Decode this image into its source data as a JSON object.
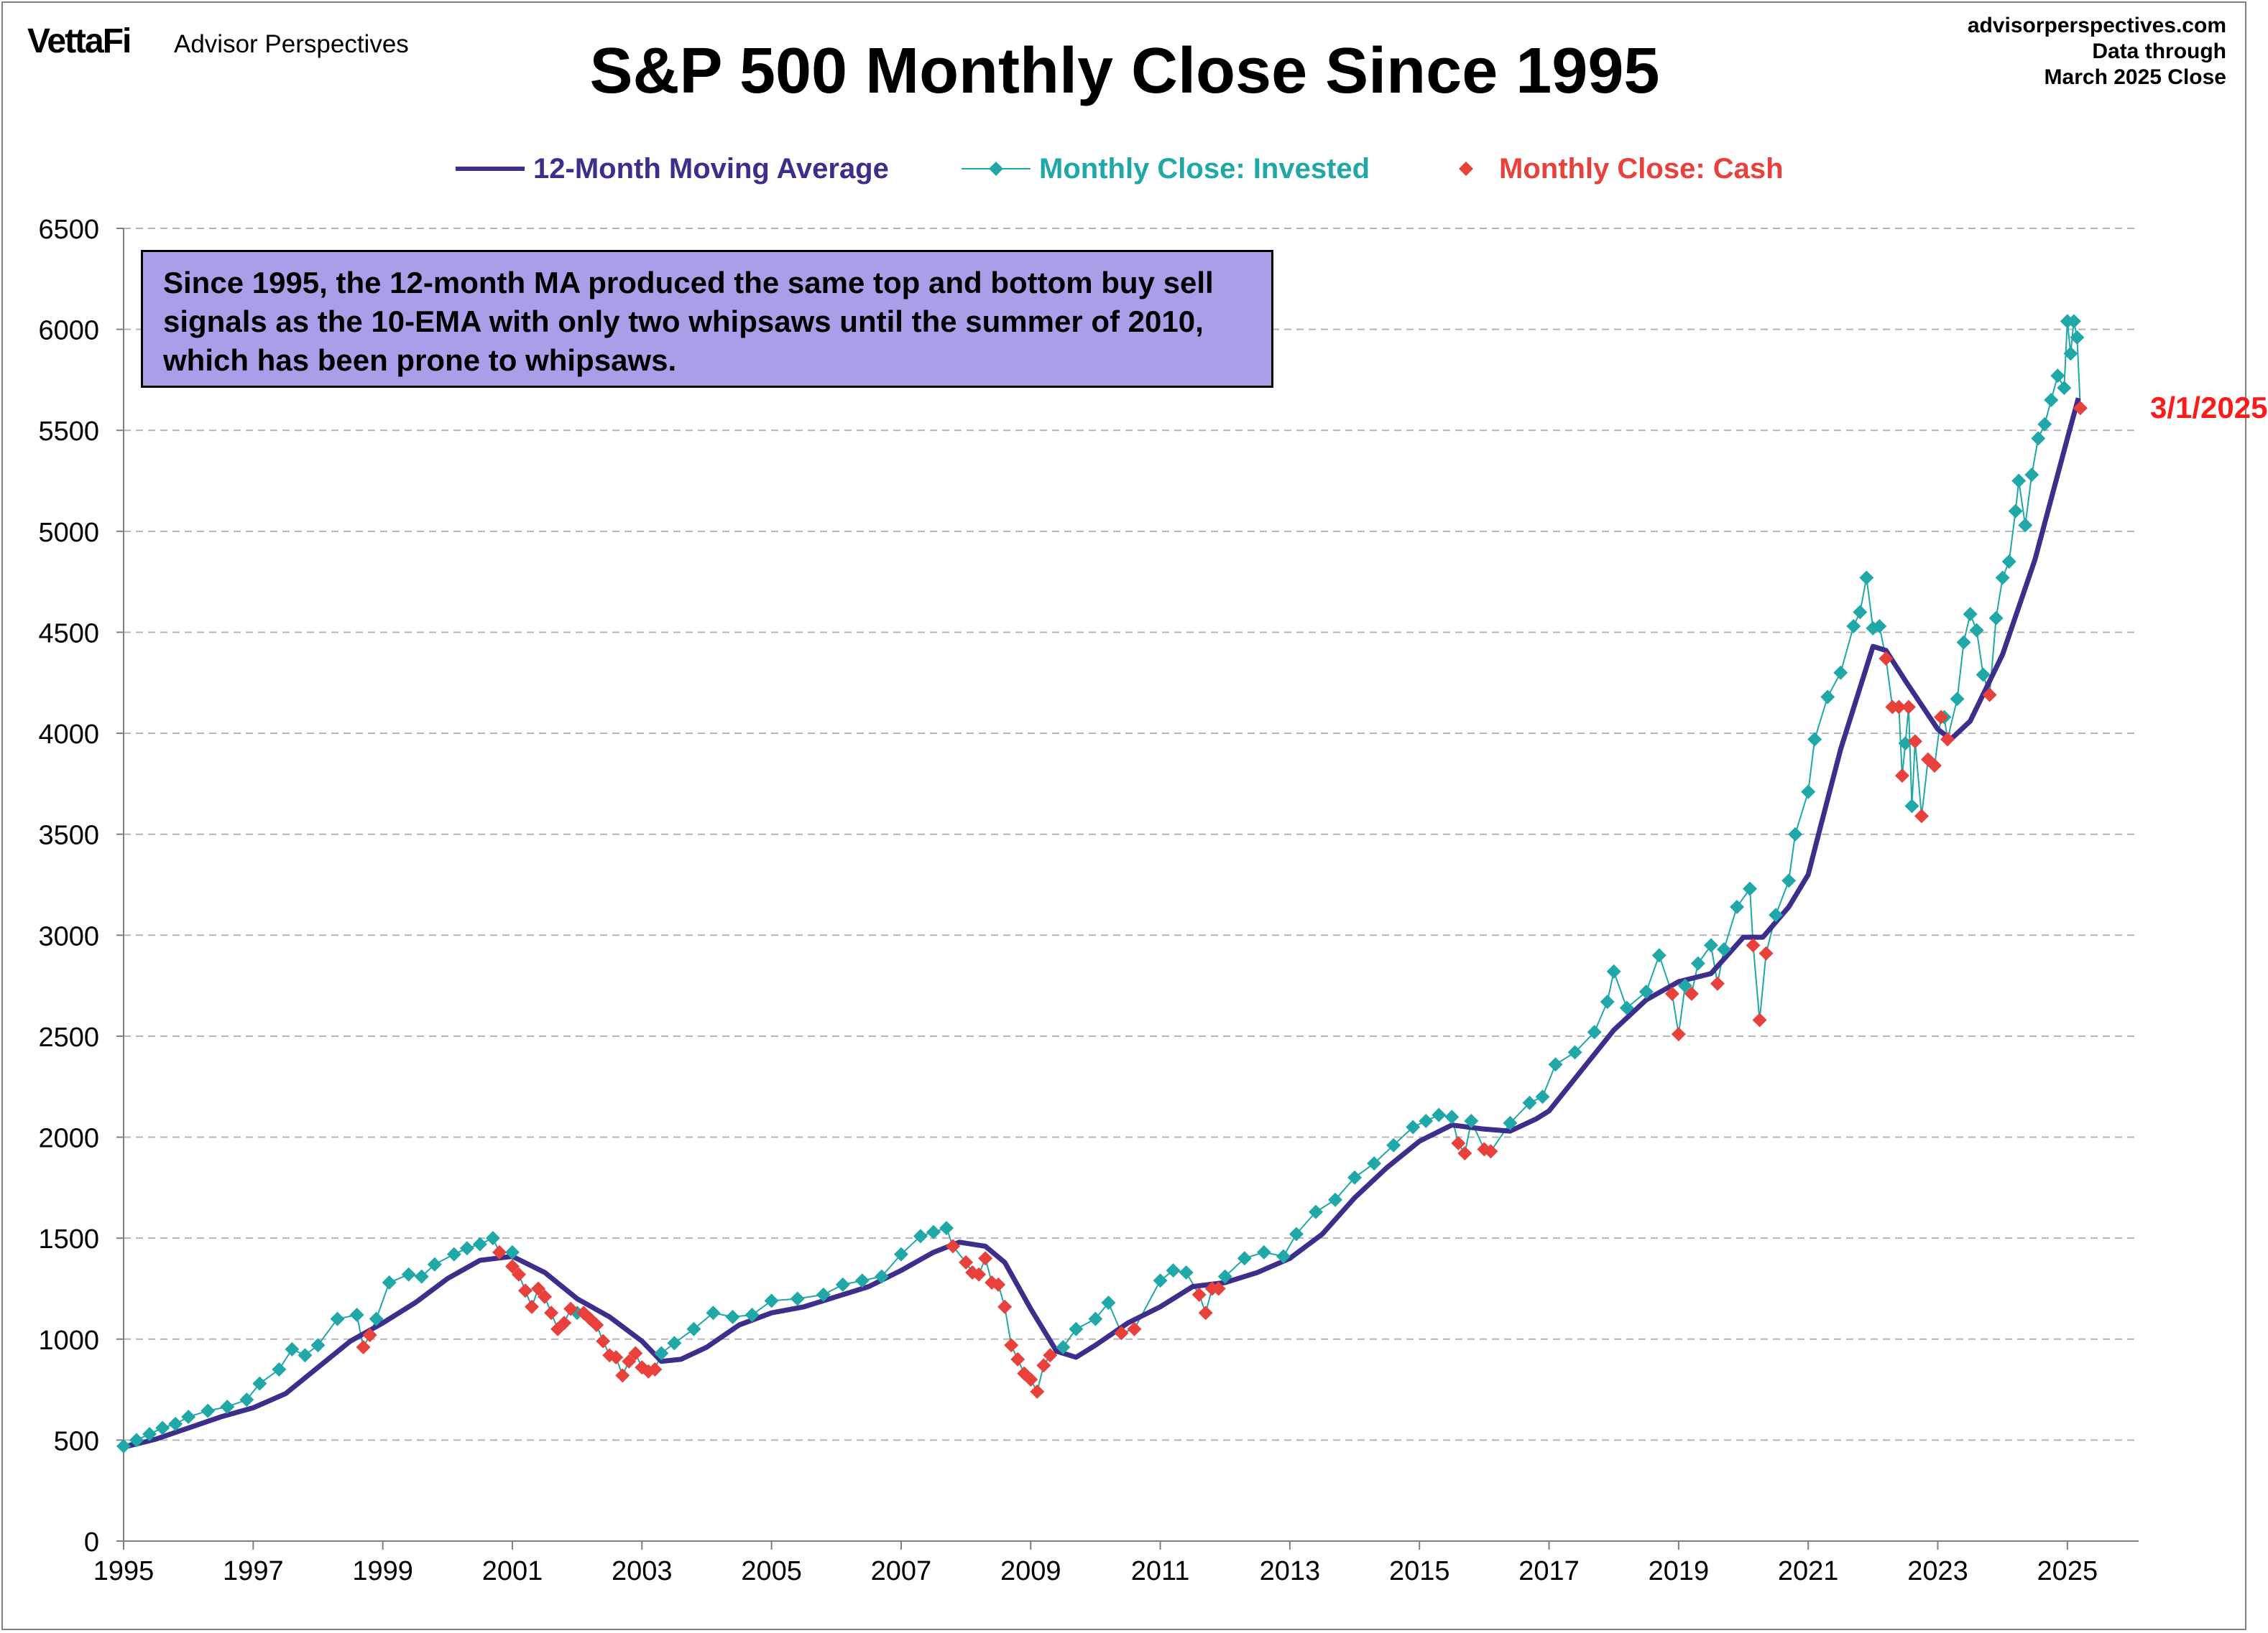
{
  "header": {
    "logo": "VettaFi",
    "logo_sub": "Advisor Perspectives",
    "source_lines": [
      "advisorperspectives.com",
      "Data through",
      "March 2025 Close"
    ]
  },
  "chart_data": {
    "type": "line",
    "title": "S&P 500 Monthly Close Since 1995",
    "xlabel": "",
    "ylabel": "",
    "ylim": [
      0,
      6500
    ],
    "xlim": [
      1995,
      2026.1
    ],
    "yticks": [
      0,
      500,
      1000,
      1500,
      2000,
      2500,
      3000,
      3500,
      4000,
      4500,
      5000,
      5500,
      6000,
      6500
    ],
    "xticks": [
      1995,
      1997,
      1999,
      2001,
      2003,
      2005,
      2007,
      2009,
      2011,
      2013,
      2015,
      2017,
      2019,
      2021,
      2023,
      2025
    ],
    "grid": "horizontal dashed",
    "legend_position": "top",
    "annotation": "Since 1995, the 12-month MA produced the same top and bottom buy sell signals as the 10-EMA with only two whipsaws until the summer of 2010, which has been prone to whipsaws.",
    "end_label": "3/1/2025",
    "colors": {
      "ma": "#3d2e8c",
      "invested": "#20a7a7",
      "cash": "#e8403b",
      "end_label": "#ff1a1a",
      "annotation_bg": "#ab9ee8"
    },
    "series": [
      {
        "name": "12-Month Moving Average",
        "style": "line",
        "points": [
          [
            1995.0,
            465
          ],
          [
            1995.5,
            505
          ],
          [
            1996.0,
            560
          ],
          [
            1996.5,
            615
          ],
          [
            1997.0,
            660
          ],
          [
            1997.5,
            730
          ],
          [
            1998.0,
            860
          ],
          [
            1998.5,
            990
          ],
          [
            1999.0,
            1080
          ],
          [
            1999.5,
            1180
          ],
          [
            2000.0,
            1300
          ],
          [
            2000.5,
            1390
          ],
          [
            2001.0,
            1410
          ],
          [
            2001.5,
            1330
          ],
          [
            2002.0,
            1200
          ],
          [
            2002.5,
            1110
          ],
          [
            2003.0,
            990
          ],
          [
            2003.3,
            890
          ],
          [
            2003.6,
            900
          ],
          [
            2004.0,
            960
          ],
          [
            2004.5,
            1070
          ],
          [
            2005.0,
            1130
          ],
          [
            2005.5,
            1160
          ],
          [
            2006.0,
            1210
          ],
          [
            2006.5,
            1260
          ],
          [
            2007.0,
            1340
          ],
          [
            2007.5,
            1430
          ],
          [
            2007.9,
            1480
          ],
          [
            2008.3,
            1460
          ],
          [
            2008.6,
            1380
          ],
          [
            2009.0,
            1150
          ],
          [
            2009.4,
            940
          ],
          [
            2009.7,
            910
          ],
          [
            2010.0,
            970
          ],
          [
            2010.5,
            1080
          ],
          [
            2011.0,
            1160
          ],
          [
            2011.5,
            1260
          ],
          [
            2012.0,
            1280
          ],
          [
            2012.5,
            1330
          ],
          [
            2013.0,
            1400
          ],
          [
            2013.5,
            1520
          ],
          [
            2014.0,
            1700
          ],
          [
            2014.5,
            1850
          ],
          [
            2015.0,
            1980
          ],
          [
            2015.5,
            2060
          ],
          [
            2016.0,
            2040
          ],
          [
            2016.4,
            2030
          ],
          [
            2016.8,
            2090
          ],
          [
            2017.0,
            2130
          ],
          [
            2017.5,
            2330
          ],
          [
            2018.0,
            2530
          ],
          [
            2018.5,
            2680
          ],
          [
            2019.0,
            2770
          ],
          [
            2019.5,
            2810
          ],
          [
            2020.0,
            2990
          ],
          [
            2020.3,
            2990
          ],
          [
            2020.7,
            3140
          ],
          [
            2021.0,
            3300
          ],
          [
            2021.2,
            3550
          ],
          [
            2021.5,
            3920
          ],
          [
            2022.0,
            4430
          ],
          [
            2022.2,
            4410
          ],
          [
            2022.5,
            4260
          ],
          [
            2023.0,
            4020
          ],
          [
            2023.2,
            3970
          ],
          [
            2023.5,
            4060
          ],
          [
            2024.0,
            4390
          ],
          [
            2024.5,
            4860
          ],
          [
            2025.0,
            5460
          ],
          [
            2025.17,
            5660
          ]
        ]
      },
      {
        "name": "Monthly Close: Invested",
        "style": "markers",
        "points": [
          [
            1995.0,
            470
          ],
          [
            1995.2,
            500
          ],
          [
            1995.4,
            530
          ],
          [
            1995.6,
            560
          ],
          [
            1995.8,
            580
          ],
          [
            1996.0,
            615
          ],
          [
            1996.3,
            645
          ],
          [
            1996.6,
            665
          ],
          [
            1996.9,
            700
          ],
          [
            1997.1,
            780
          ],
          [
            1997.4,
            850
          ],
          [
            1997.6,
            950
          ],
          [
            1997.8,
            920
          ],
          [
            1998.0,
            970
          ],
          [
            1998.3,
            1100
          ],
          [
            1998.6,
            1120
          ],
          [
            1998.9,
            1100
          ],
          [
            1999.1,
            1280
          ],
          [
            1999.4,
            1320
          ],
          [
            1999.6,
            1310
          ],
          [
            1999.8,
            1370
          ],
          [
            2000.1,
            1420
          ],
          [
            2000.3,
            1450
          ],
          [
            2000.5,
            1470
          ],
          [
            2000.7,
            1500
          ],
          [
            2001.0,
            1430
          ],
          [
            2002.0,
            1130
          ],
          [
            2003.3,
            930
          ],
          [
            2003.5,
            980
          ],
          [
            2003.8,
            1050
          ],
          [
            2004.1,
            1130
          ],
          [
            2004.4,
            1110
          ],
          [
            2004.7,
            1120
          ],
          [
            2005.0,
            1190
          ],
          [
            2005.4,
            1200
          ],
          [
            2005.8,
            1220
          ],
          [
            2006.1,
            1270
          ],
          [
            2006.4,
            1290
          ],
          [
            2006.7,
            1310
          ],
          [
            2007.0,
            1420
          ],
          [
            2007.3,
            1510
          ],
          [
            2007.5,
            1530
          ],
          [
            2007.7,
            1550
          ],
          [
            2009.5,
            960
          ],
          [
            2009.7,
            1050
          ],
          [
            2010.0,
            1100
          ],
          [
            2010.2,
            1180
          ],
          [
            2011.0,
            1290
          ],
          [
            2011.2,
            1340
          ],
          [
            2011.4,
            1330
          ],
          [
            2012.0,
            1310
          ],
          [
            2012.3,
            1400
          ],
          [
            2012.6,
            1430
          ],
          [
            2012.9,
            1410
          ],
          [
            2013.1,
            1520
          ],
          [
            2013.4,
            1630
          ],
          [
            2013.7,
            1690
          ],
          [
            2014.0,
            1800
          ],
          [
            2014.3,
            1870
          ],
          [
            2014.6,
            1960
          ],
          [
            2014.9,
            2050
          ],
          [
            2015.1,
            2080
          ],
          [
            2015.3,
            2110
          ],
          [
            2015.5,
            2100
          ],
          [
            2015.8,
            2080
          ],
          [
            2016.4,
            2070
          ],
          [
            2016.7,
            2170
          ],
          [
            2016.9,
            2200
          ],
          [
            2017.1,
            2360
          ],
          [
            2017.4,
            2420
          ],
          [
            2017.7,
            2520
          ],
          [
            2017.9,
            2670
          ],
          [
            2018.0,
            2820
          ],
          [
            2018.2,
            2640
          ],
          [
            2018.5,
            2720
          ],
          [
            2018.7,
            2900
          ],
          [
            2019.1,
            2750
          ],
          [
            2019.3,
            2860
          ],
          [
            2019.5,
            2950
          ],
          [
            2019.7,
            2930
          ],
          [
            2019.9,
            3140
          ],
          [
            2020.1,
            3230
          ],
          [
            2020.5,
            3100
          ],
          [
            2020.7,
            3270
          ],
          [
            2020.8,
            3500
          ],
          [
            2021.0,
            3710
          ],
          [
            2021.1,
            3970
          ],
          [
            2021.3,
            4180
          ],
          [
            2021.5,
            4300
          ],
          [
            2021.7,
            4530
          ],
          [
            2021.8,
            4600
          ],
          [
            2021.9,
            4770
          ],
          [
            2022.0,
            4520
          ],
          [
            2022.1,
            4530
          ],
          [
            2022.5,
            3950
          ],
          [
            2022.6,
            3640
          ],
          [
            2023.1,
            4080
          ],
          [
            2023.3,
            4170
          ],
          [
            2023.4,
            4450
          ],
          [
            2023.5,
            4590
          ],
          [
            2023.6,
            4510
          ],
          [
            2023.7,
            4290
          ],
          [
            2023.9,
            4570
          ],
          [
            2024.0,
            4770
          ],
          [
            2024.1,
            4850
          ],
          [
            2024.2,
            5100
          ],
          [
            2024.25,
            5250
          ],
          [
            2024.35,
            5030
          ],
          [
            2024.45,
            5280
          ],
          [
            2024.55,
            5460
          ],
          [
            2024.65,
            5530
          ],
          [
            2024.75,
            5650
          ],
          [
            2024.85,
            5770
          ],
          [
            2024.95,
            5710
          ],
          [
            2025.0,
            6040
          ],
          [
            2025.05,
            5880
          ],
          [
            2025.1,
            6040
          ],
          [
            2025.15,
            5960
          ]
        ]
      },
      {
        "name": "Monthly Close: Cash",
        "style": "markers",
        "points": [
          [
            1998.7,
            960
          ],
          [
            1998.8,
            1020
          ],
          [
            2000.8,
            1430
          ],
          [
            2001.0,
            1360
          ],
          [
            2001.1,
            1320
          ],
          [
            2001.2,
            1240
          ],
          [
            2001.3,
            1160
          ],
          [
            2001.4,
            1250
          ],
          [
            2001.5,
            1210
          ],
          [
            2001.6,
            1130
          ],
          [
            2001.7,
            1050
          ],
          [
            2001.8,
            1080
          ],
          [
            2001.9,
            1150
          ],
          [
            2002.1,
            1130
          ],
          [
            2002.2,
            1100
          ],
          [
            2002.3,
            1070
          ],
          [
            2002.4,
            990
          ],
          [
            2002.5,
            920
          ],
          [
            2002.6,
            910
          ],
          [
            2002.7,
            820
          ],
          [
            2002.8,
            890
          ],
          [
            2002.9,
            930
          ],
          [
            2003.0,
            860
          ],
          [
            2003.1,
            840
          ],
          [
            2003.2,
            850
          ],
          [
            2007.8,
            1460
          ],
          [
            2008.0,
            1380
          ],
          [
            2008.1,
            1330
          ],
          [
            2008.2,
            1320
          ],
          [
            2008.3,
            1400
          ],
          [
            2008.4,
            1280
          ],
          [
            2008.5,
            1270
          ],
          [
            2008.6,
            1160
          ],
          [
            2008.7,
            970
          ],
          [
            2008.8,
            900
          ],
          [
            2008.9,
            830
          ],
          [
            2009.0,
            800
          ],
          [
            2009.1,
            740
          ],
          [
            2009.2,
            870
          ],
          [
            2009.3,
            920
          ],
          [
            2010.4,
            1030
          ],
          [
            2010.6,
            1050
          ],
          [
            2011.6,
            1220
          ],
          [
            2011.7,
            1130
          ],
          [
            2011.8,
            1250
          ],
          [
            2011.9,
            1250
          ],
          [
            2015.6,
            1970
          ],
          [
            2015.7,
            1920
          ],
          [
            2016.0,
            1940
          ],
          [
            2016.1,
            1930
          ],
          [
            2018.9,
            2710
          ],
          [
            2019.0,
            2510
          ],
          [
            2019.2,
            2710
          ],
          [
            2019.6,
            2760
          ],
          [
            2020.15,
            2950
          ],
          [
            2020.25,
            2580
          ],
          [
            2020.35,
            2910
          ],
          [
            2022.2,
            4370
          ],
          [
            2022.3,
            4130
          ],
          [
            2022.4,
            4130
          ],
          [
            2022.45,
            3790
          ],
          [
            2022.55,
            4130
          ],
          [
            2022.65,
            3960
          ],
          [
            2022.75,
            3590
          ],
          [
            2022.85,
            3870
          ],
          [
            2022.95,
            3840
          ],
          [
            2023.05,
            4080
          ],
          [
            2023.15,
            3970
          ],
          [
            2023.8,
            4190
          ],
          [
            2025.2,
            5610
          ]
        ]
      }
    ]
  }
}
